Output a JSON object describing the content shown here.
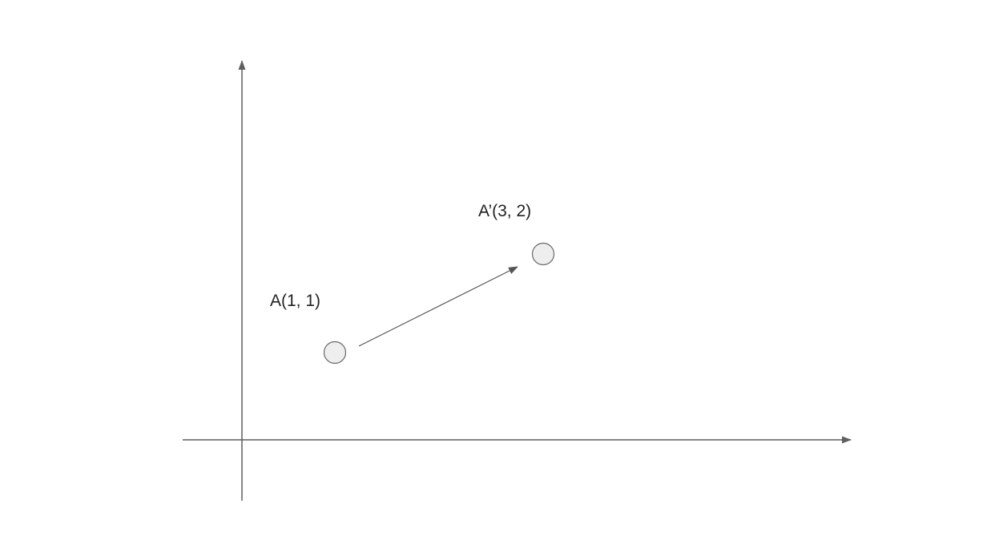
{
  "points": [
    {
      "label": "A(1, 1)",
      "x": 1,
      "y": 1
    },
    {
      "label": "A’(3, 2)",
      "x": 3,
      "y": 2
    }
  ],
  "arrow": {
    "from": "A",
    "to": "A’"
  },
  "colors": {
    "axis": "#5f5f5f",
    "point_fill": "#eeeeee",
    "point_stroke": "#6a6a6a",
    "arrow": "#555555"
  }
}
